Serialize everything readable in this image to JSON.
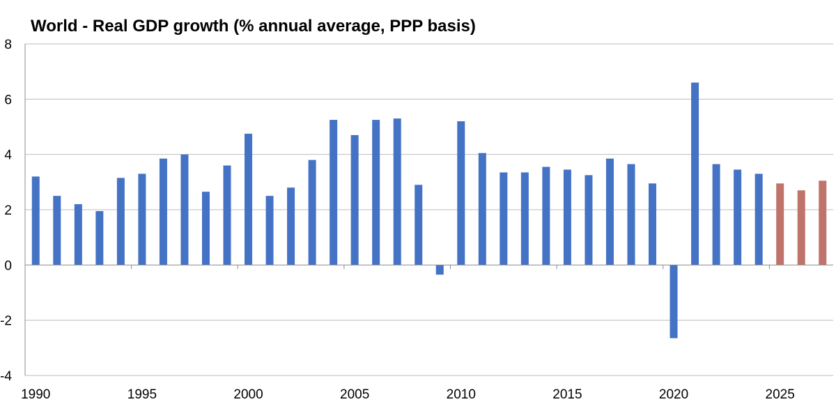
{
  "chart_data": {
    "type": "bar",
    "title": "World - Real GDP growth (% annual average, PPP basis)",
    "xlabel": "",
    "ylabel": "",
    "ylim": [
      -4,
      8
    ],
    "yticks": [
      -4,
      -2,
      0,
      2,
      4,
      6,
      8
    ],
    "xtick_labels": [
      "1990",
      "1995",
      "2000",
      "2005",
      "2010",
      "2015",
      "2020",
      "2025"
    ],
    "grid": "horizontal",
    "legend": "none",
    "colors": {
      "actual": "#4472C4",
      "forecast": "#C0736B"
    },
    "categories": [
      "1990",
      "1991",
      "1992",
      "1993",
      "1994",
      "1995",
      "1996",
      "1997",
      "1998",
      "1999",
      "2000",
      "2001",
      "2002",
      "2003",
      "2004",
      "2005",
      "2006",
      "2007",
      "2008",
      "2009",
      "2010",
      "2011",
      "2012",
      "2013",
      "2014",
      "2015",
      "2016",
      "2017",
      "2018",
      "2019",
      "2020",
      "2021",
      "2022",
      "2023",
      "2024",
      "2025",
      "2026",
      "2027"
    ],
    "values": [
      3.2,
      2.5,
      2.2,
      1.95,
      3.15,
      3.3,
      3.85,
      4.0,
      2.65,
      3.6,
      4.75,
      2.5,
      2.8,
      3.8,
      5.25,
      4.7,
      5.25,
      5.3,
      2.9,
      -0.35,
      5.2,
      4.05,
      3.35,
      3.35,
      3.55,
      3.45,
      3.25,
      3.85,
      3.65,
      2.95,
      -2.65,
      6.6,
      3.65,
      3.45,
      3.3,
      2.95,
      2.7,
      3.05
    ],
    "forecast_from": "2025"
  }
}
